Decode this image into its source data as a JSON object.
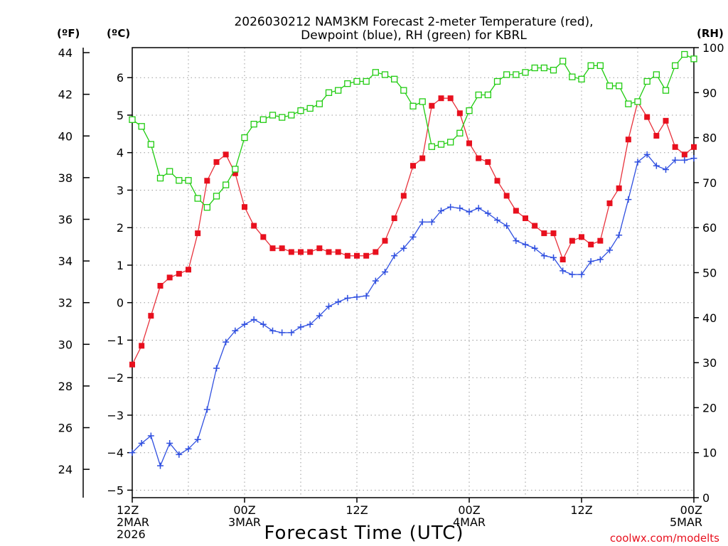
{
  "colors": {
    "temperature": "#e8323c",
    "temperature_marker": "#e8101e",
    "dewpoint": "#2f4fe0",
    "rh": "#20cc10",
    "grid": "#9a9a9a",
    "credit": "#e8101e"
  },
  "chart_data": {
    "type": "line",
    "title": "2026030212 NAM3KM Forecast 2-meter Temperature (red), Dewpoint (blue), RH (green) for KBRL",
    "title_lines": [
      "2026030212 NAM3KM Forecast 2-meter Temperature (red),",
      "Dewpoint (blue), RH (green) for KBRL"
    ],
    "xlabel": "Forecast Time (UTC)",
    "credit": "coolwx.com/modelts",
    "unit_labels": {
      "fahrenheit": "(ºF)",
      "celsius": "(ºC)",
      "rh": "(RH)"
    },
    "x_hours_range": [
      0,
      60
    ],
    "x_ticks": [
      {
        "hour": 0,
        "lines": [
          "12Z",
          "2MAR",
          "2026"
        ]
      },
      {
        "hour": 12,
        "lines": [
          "00Z",
          "3MAR"
        ]
      },
      {
        "hour": 24,
        "lines": [
          "12Z"
        ]
      },
      {
        "hour": 36,
        "lines": [
          "00Z",
          "4MAR"
        ]
      },
      {
        "hour": 48,
        "lines": [
          "12Z"
        ]
      },
      {
        "hour": 60,
        "lines": [
          "00Z",
          "5MAR"
        ]
      }
    ],
    "celsius_range": [
      -5.2,
      6.8
    ],
    "celsius_ticks": [
      -5,
      -4,
      -3,
      -2,
      -1,
      0,
      1,
      2,
      3,
      4,
      5,
      6
    ],
    "fahrenheit_ticks": [
      24,
      26,
      28,
      30,
      32,
      34,
      36,
      38,
      40,
      42,
      44
    ],
    "rh_range": [
      0,
      100
    ],
    "rh_ticks": [
      0,
      10,
      20,
      30,
      40,
      50,
      60,
      70,
      80,
      90,
      100
    ],
    "series": [
      {
        "name": "2-meter Temperature",
        "units": "°C",
        "color_key": "temperature",
        "marker": "filled-square",
        "values": [
          -1.65,
          -1.15,
          -0.35,
          0.45,
          0.67,
          0.77,
          0.88,
          1.85,
          3.25,
          3.75,
          3.95,
          3.45,
          2.55,
          2.05,
          1.75,
          1.45,
          1.45,
          1.35,
          1.35,
          1.35,
          1.45,
          1.35,
          1.35,
          1.25,
          1.25,
          1.25,
          1.35,
          1.65,
          2.25,
          2.85,
          3.65,
          3.85,
          5.25,
          5.45,
          5.45,
          5.05,
          4.25,
          3.85,
          3.75,
          3.25,
          2.85,
          2.45,
          2.25,
          2.05,
          1.85,
          1.85,
          1.15,
          1.65,
          1.75,
          1.55,
          1.65,
          2.65,
          3.05,
          4.35,
          5.35,
          4.95,
          4.45,
          4.85,
          4.15,
          3.95,
          4.15
        ]
      },
      {
        "name": "Dewpoint",
        "units": "°C",
        "color_key": "dewpoint",
        "marker": "plus",
        "values": [
          -4.0,
          -3.75,
          -3.55,
          -4.35,
          -3.75,
          -4.05,
          -3.9,
          -3.65,
          -2.85,
          -1.75,
          -1.05,
          -0.75,
          -0.58,
          -0.45,
          -0.58,
          -0.75,
          -0.8,
          -0.8,
          -0.65,
          -0.58,
          -0.35,
          -0.1,
          0.02,
          0.12,
          0.15,
          0.18,
          0.58,
          0.82,
          1.25,
          1.45,
          1.75,
          2.15,
          2.15,
          2.45,
          2.55,
          2.52,
          2.42,
          2.52,
          2.38,
          2.2,
          2.05,
          1.65,
          1.55,
          1.45,
          1.25,
          1.2,
          0.85,
          0.75,
          0.75,
          1.1,
          1.15,
          1.4,
          1.8,
          2.75,
          3.75,
          3.95,
          3.65,
          3.55,
          3.8,
          3.8,
          3.85
        ]
      },
      {
        "name": "RH",
        "units": "%",
        "color_key": "rh",
        "marker": "open-square",
        "values": [
          84,
          82.5,
          78.5,
          71,
          72.5,
          70.5,
          70.5,
          66.5,
          64.5,
          67,
          69.5,
          73,
          80,
          83,
          84,
          85,
          84.5,
          85,
          86,
          86.5,
          87.5,
          90,
          90.5,
          92,
          92.5,
          92.5,
          94.5,
          94,
          93,
          90.5,
          87,
          88,
          78,
          78.5,
          79,
          81,
          86,
          89.5,
          89.5,
          92.5,
          94,
          94,
          94.5,
          95.5,
          95.5,
          95,
          97,
          93.5,
          93,
          96,
          96,
          91.5,
          91.5,
          87.5,
          88,
          92.5,
          94,
          90.5,
          96,
          98.5,
          97.5
        ]
      }
    ]
  }
}
